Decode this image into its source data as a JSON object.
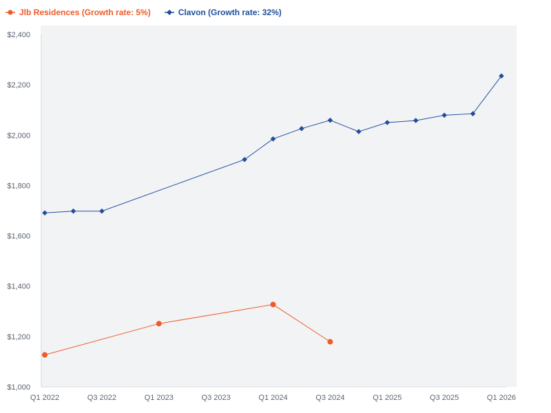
{
  "chart_data": {
    "type": "line",
    "title": "",
    "xlabel": "",
    "ylabel": "",
    "ylim": [
      1000,
      2400
    ],
    "yticks": [
      1000,
      1200,
      1400,
      1600,
      1800,
      2000,
      2200,
      2400
    ],
    "ytick_labels": [
      "$1,000",
      "$1,200",
      "$1,400",
      "$1,600",
      "$1,800",
      "$2,000",
      "$2,200",
      "$2,400"
    ],
    "x_range": [
      0,
      16
    ],
    "xticks": [
      0,
      2,
      4,
      6,
      8,
      10,
      12,
      14,
      16
    ],
    "xtick_labels": [
      "Q1 2022",
      "Q3 2022",
      "Q1 2023",
      "Q3 2023",
      "Q1 2024",
      "Q3 2024",
      "Q1 2025",
      "Q3 2025",
      "Q1 2026"
    ],
    "grid": false,
    "legend_position": "top-left",
    "series": [
      {
        "name": "Jlb Residences (Growth rate: 5%)",
        "color": "#f05a28",
        "marker": "circle",
        "x": [
          0,
          4,
          8,
          10
        ],
        "values": [
          1127,
          1251,
          1327,
          1179
        ]
      },
      {
        "name": "Clavon (Growth rate: 32%)",
        "color": "#1f4e9c",
        "marker": "diamond",
        "x": [
          0,
          1,
          2,
          7,
          8,
          9,
          10,
          11,
          12,
          13,
          14,
          15,
          16
        ],
        "values": [
          1691,
          1698,
          1698,
          1903,
          1985,
          2026,
          2059,
          2014,
          2050,
          2058,
          2079,
          2085,
          2235
        ]
      }
    ]
  }
}
